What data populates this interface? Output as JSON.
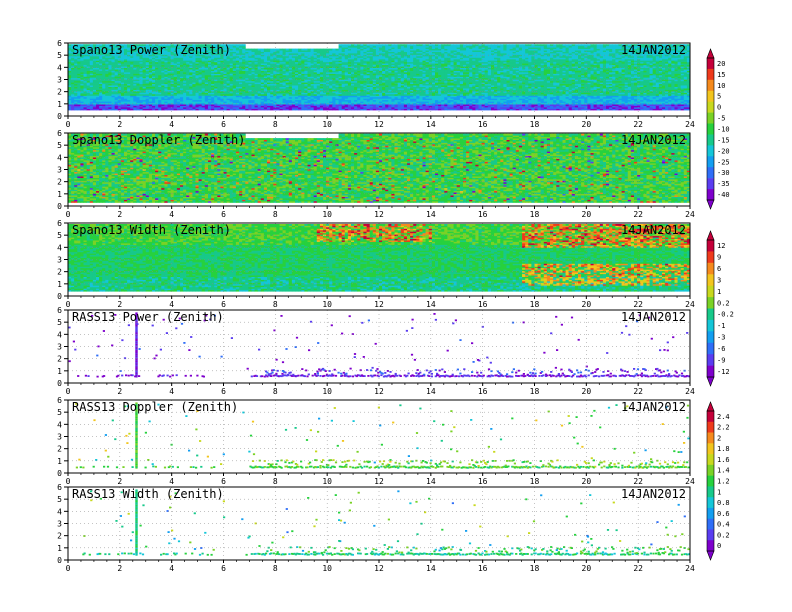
{
  "chart_data": [
    {
      "type": "heatmap",
      "title": "Spano13 Power (Zenith)",
      "date": "14JAN2012",
      "xlim": [
        0,
        24
      ],
      "ylim": [
        0,
        6
      ],
      "x_ticks": [
        "0",
        "2",
        "4",
        "6",
        "8",
        "10",
        "12",
        "14",
        "16",
        "18",
        "20",
        "22",
        "24"
      ],
      "y_ticks": [
        "0",
        "1",
        "2",
        "3",
        "4",
        "5",
        "6"
      ],
      "colorbar": [
        "20",
        "15",
        "10",
        "5",
        "0",
        "-5",
        "-10",
        "-15",
        "-20",
        "-25",
        "-30",
        "-35",
        "-40"
      ],
      "structure": {
        "bottom": 0.5,
        "top": 5.9,
        "gap": [
          6.8,
          10.4,
          5.5
        ],
        "bands": [
          {
            "y": [
              0.5,
              0.9
            ],
            "value": -32
          },
          {
            "y": [
              0.9,
              1.6
            ],
            "value": -22
          },
          {
            "y": [
              1.6,
              4.5
            ],
            "value": -15
          },
          {
            "y": [
              4.5,
              5.9
            ],
            "value": -18
          }
        ]
      }
    },
    {
      "type": "heatmap",
      "title": "Spano13 Doppler (Zenith)",
      "date": "14JAN2012",
      "xlim": [
        0,
        24
      ],
      "ylim": [
        0,
        6
      ],
      "x_ticks": [
        "0",
        "2",
        "4",
        "6",
        "8",
        "10",
        "12",
        "14",
        "16",
        "18",
        "20",
        "22",
        "24"
      ],
      "y_ticks": [
        "0",
        "1",
        "2",
        "3",
        "4",
        "5",
        "6"
      ],
      "structure": {
        "bottom": 0.3,
        "top": 5.9,
        "gap": [
          6.8,
          10.4,
          5.5
        ],
        "bands": [
          {
            "y": [
              0.3,
              5.9
            ],
            "value": 0
          }
        ]
      }
    },
    {
      "type": "heatmap",
      "title": "Spano13 Width (Zenith)",
      "date": "14JAN2012",
      "xlim": [
        0,
        24
      ],
      "ylim": [
        0,
        6
      ],
      "x_ticks": [
        "0",
        "2",
        "4",
        "6",
        "8",
        "10",
        "12",
        "14",
        "16",
        "18",
        "20",
        "22",
        "24"
      ],
      "y_ticks": [
        "0",
        "1",
        "2",
        "3",
        "4",
        "5",
        "6"
      ],
      "colorbar": [
        "12",
        "9",
        "6",
        "3",
        "1",
        "0.2",
        "-0.2",
        "-1",
        "-3",
        "-6",
        "-9",
        "-12"
      ],
      "structure": {
        "bottom": 0.4,
        "top": 5.9,
        "bands": [
          {
            "y": [
              0.4,
              1.6
            ],
            "value": -2
          },
          {
            "y": [
              1.6,
              4.2
            ],
            "value": -1
          },
          {
            "y": [
              4.2,
              5.9
            ],
            "value": 0.5
          }
        ]
      }
    },
    {
      "type": "scatter",
      "title": "RASS13 Power (Zenith)",
      "date": "14JAN2012",
      "xlim": [
        0,
        24
      ],
      "ylim": [
        0,
        6
      ],
      "x_ticks": [
        "0",
        "2",
        "4",
        "6",
        "8",
        "10",
        "12",
        "14",
        "16",
        "18",
        "20",
        "22",
        "24"
      ],
      "y_ticks": [
        "0",
        "1",
        "2",
        "3",
        "4",
        "5",
        "6"
      ],
      "structure": {
        "spike_x": 2.6,
        "spike_top": 5.8,
        "base_y": 0.6,
        "value": -10
      }
    },
    {
      "type": "scatter",
      "title": "RASS13 Doppler (Zenith)",
      "date": "14JAN2012",
      "xlim": [
        0,
        24
      ],
      "ylim": [
        0,
        6
      ],
      "x_ticks": [
        "0",
        "2",
        "4",
        "6",
        "8",
        "10",
        "12",
        "14",
        "16",
        "18",
        "20",
        "22",
        "24"
      ],
      "y_ticks": [
        "0",
        "1",
        "2",
        "3",
        "4",
        "5",
        "6"
      ],
      "colorbar": [
        "2.4",
        "2.2",
        "2",
        "1.8",
        "1.6",
        "1.4",
        "1.2",
        "1",
        "0.8",
        "0.6",
        "0.4",
        "0.2",
        "0"
      ],
      "structure": {
        "spike_x": 2.6,
        "spike_top": 5.8,
        "base_y": 0.5,
        "value": 1.3
      }
    },
    {
      "type": "scatter",
      "title": "RASS13 Width (Zenith)",
      "date": "14JAN2012",
      "xlim": [
        0,
        24
      ],
      "ylim": [
        0,
        6
      ],
      "x_ticks": [
        "0",
        "2",
        "4",
        "6",
        "8",
        "10",
        "12",
        "14",
        "16",
        "18",
        "20",
        "22",
        "24"
      ],
      "y_ticks": [
        "0",
        "1",
        "2",
        "3",
        "4",
        "5",
        "6"
      ],
      "structure": {
        "spike_x": 2.6,
        "spike_top": 5.8,
        "base_y": 0.5,
        "value": 1.1
      }
    }
  ]
}
